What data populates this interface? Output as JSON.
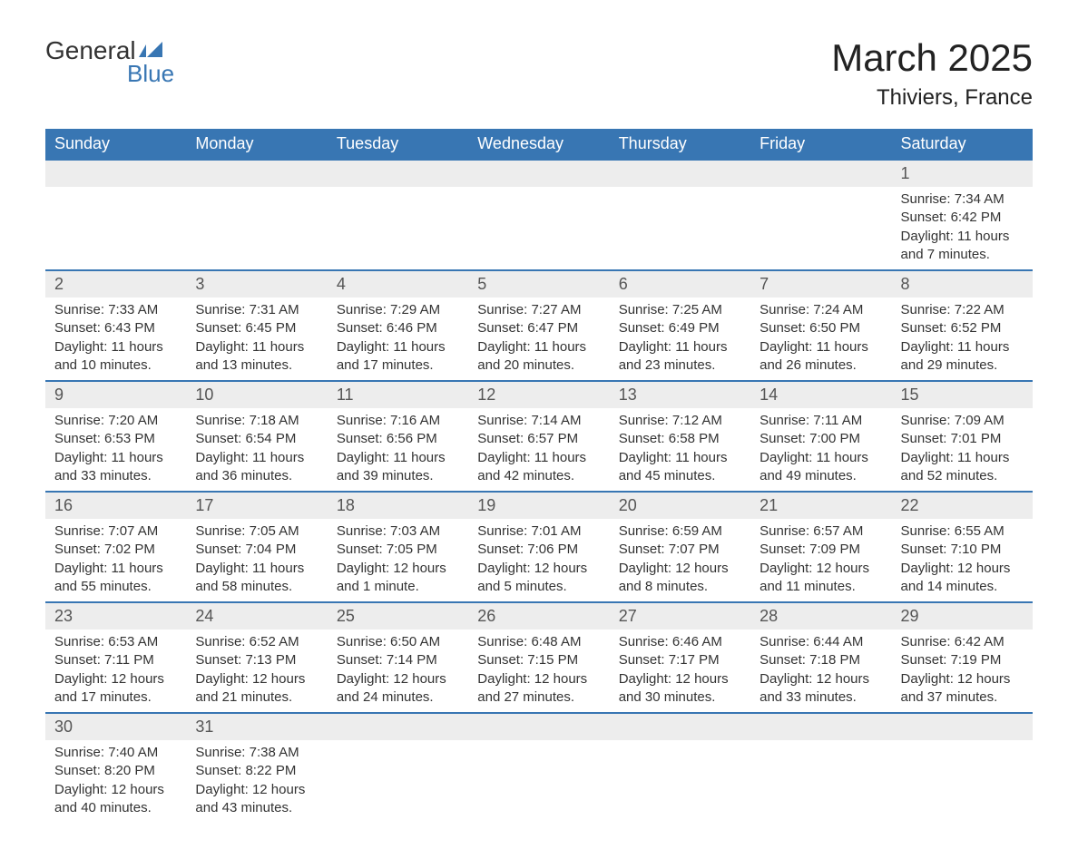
{
  "logo": {
    "word1": "General",
    "word2": "Blue",
    "tri_color": "#3876b3"
  },
  "title": "March 2025",
  "location": "Thiviers, France",
  "weekday_header_bg": "#3876b3",
  "weekday_header_fg": "#ffffff",
  "daynum_bg": "#ededed",
  "row_divider_color": "#3876b3",
  "text_color": "#333333",
  "weekdays": [
    "Sunday",
    "Monday",
    "Tuesday",
    "Wednesday",
    "Thursday",
    "Friday",
    "Saturday"
  ],
  "weeks": [
    [
      null,
      null,
      null,
      null,
      null,
      null,
      {
        "n": "1",
        "sunrise": "7:34 AM",
        "sunset": "6:42 PM",
        "daylight": "11 hours and 7 minutes."
      }
    ],
    [
      {
        "n": "2",
        "sunrise": "7:33 AM",
        "sunset": "6:43 PM",
        "daylight": "11 hours and 10 minutes."
      },
      {
        "n": "3",
        "sunrise": "7:31 AM",
        "sunset": "6:45 PM",
        "daylight": "11 hours and 13 minutes."
      },
      {
        "n": "4",
        "sunrise": "7:29 AM",
        "sunset": "6:46 PM",
        "daylight": "11 hours and 17 minutes."
      },
      {
        "n": "5",
        "sunrise": "7:27 AM",
        "sunset": "6:47 PM",
        "daylight": "11 hours and 20 minutes."
      },
      {
        "n": "6",
        "sunrise": "7:25 AM",
        "sunset": "6:49 PM",
        "daylight": "11 hours and 23 minutes."
      },
      {
        "n": "7",
        "sunrise": "7:24 AM",
        "sunset": "6:50 PM",
        "daylight": "11 hours and 26 minutes."
      },
      {
        "n": "8",
        "sunrise": "7:22 AM",
        "sunset": "6:52 PM",
        "daylight": "11 hours and 29 minutes."
      }
    ],
    [
      {
        "n": "9",
        "sunrise": "7:20 AM",
        "sunset": "6:53 PM",
        "daylight": "11 hours and 33 minutes."
      },
      {
        "n": "10",
        "sunrise": "7:18 AM",
        "sunset": "6:54 PM",
        "daylight": "11 hours and 36 minutes."
      },
      {
        "n": "11",
        "sunrise": "7:16 AM",
        "sunset": "6:56 PM",
        "daylight": "11 hours and 39 minutes."
      },
      {
        "n": "12",
        "sunrise": "7:14 AM",
        "sunset": "6:57 PM",
        "daylight": "11 hours and 42 minutes."
      },
      {
        "n": "13",
        "sunrise": "7:12 AM",
        "sunset": "6:58 PM",
        "daylight": "11 hours and 45 minutes."
      },
      {
        "n": "14",
        "sunrise": "7:11 AM",
        "sunset": "7:00 PM",
        "daylight": "11 hours and 49 minutes."
      },
      {
        "n": "15",
        "sunrise": "7:09 AM",
        "sunset": "7:01 PM",
        "daylight": "11 hours and 52 minutes."
      }
    ],
    [
      {
        "n": "16",
        "sunrise": "7:07 AM",
        "sunset": "7:02 PM",
        "daylight": "11 hours and 55 minutes."
      },
      {
        "n": "17",
        "sunrise": "7:05 AM",
        "sunset": "7:04 PM",
        "daylight": "11 hours and 58 minutes."
      },
      {
        "n": "18",
        "sunrise": "7:03 AM",
        "sunset": "7:05 PM",
        "daylight": "12 hours and 1 minute."
      },
      {
        "n": "19",
        "sunrise": "7:01 AM",
        "sunset": "7:06 PM",
        "daylight": "12 hours and 5 minutes."
      },
      {
        "n": "20",
        "sunrise": "6:59 AM",
        "sunset": "7:07 PM",
        "daylight": "12 hours and 8 minutes."
      },
      {
        "n": "21",
        "sunrise": "6:57 AM",
        "sunset": "7:09 PM",
        "daylight": "12 hours and 11 minutes."
      },
      {
        "n": "22",
        "sunrise": "6:55 AM",
        "sunset": "7:10 PM",
        "daylight": "12 hours and 14 minutes."
      }
    ],
    [
      {
        "n": "23",
        "sunrise": "6:53 AM",
        "sunset": "7:11 PM",
        "daylight": "12 hours and 17 minutes."
      },
      {
        "n": "24",
        "sunrise": "6:52 AM",
        "sunset": "7:13 PM",
        "daylight": "12 hours and 21 minutes."
      },
      {
        "n": "25",
        "sunrise": "6:50 AM",
        "sunset": "7:14 PM",
        "daylight": "12 hours and 24 minutes."
      },
      {
        "n": "26",
        "sunrise": "6:48 AM",
        "sunset": "7:15 PM",
        "daylight": "12 hours and 27 minutes."
      },
      {
        "n": "27",
        "sunrise": "6:46 AM",
        "sunset": "7:17 PM",
        "daylight": "12 hours and 30 minutes."
      },
      {
        "n": "28",
        "sunrise": "6:44 AM",
        "sunset": "7:18 PM",
        "daylight": "12 hours and 33 minutes."
      },
      {
        "n": "29",
        "sunrise": "6:42 AM",
        "sunset": "7:19 PM",
        "daylight": "12 hours and 37 minutes."
      }
    ],
    [
      {
        "n": "30",
        "sunrise": "7:40 AM",
        "sunset": "8:20 PM",
        "daylight": "12 hours and 40 minutes."
      },
      {
        "n": "31",
        "sunrise": "7:38 AM",
        "sunset": "8:22 PM",
        "daylight": "12 hours and 43 minutes."
      },
      null,
      null,
      null,
      null,
      null
    ]
  ],
  "labels": {
    "sunrise": "Sunrise:",
    "sunset": "Sunset:",
    "daylight": "Daylight:"
  }
}
